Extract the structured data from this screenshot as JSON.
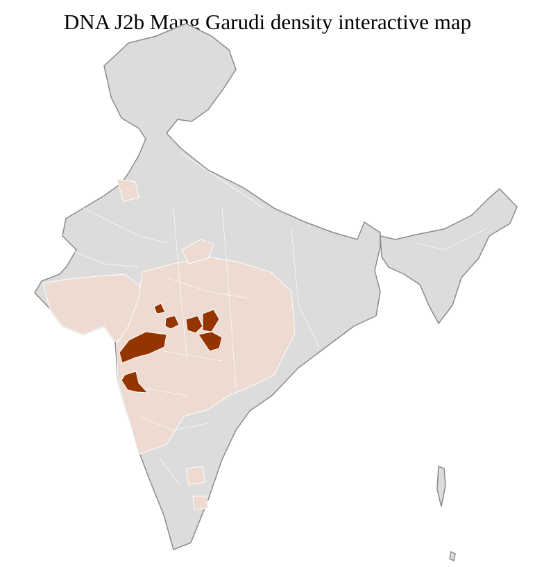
{
  "title": "DNA J2b Mang Garudi density interactive map",
  "legend_colors": {
    "no_data": "#dcdcdc",
    "low_density": "#eddad0",
    "high_density": "#943500",
    "state_border": "#8a8a8a",
    "district_border": "#ffffff"
  }
}
